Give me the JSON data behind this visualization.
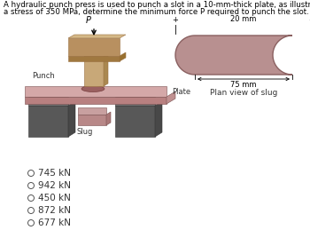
{
  "title_line1": "A hydraulic punch press is used to punch a slot in a 10-mm-thick plate, as illustrated. If the plate shears at",
  "title_line2": "a stress of 350 MPa, determine the minimum force P required to punch the slot.",
  "title_fontsize": 6.2,
  "options": [
    "745 kN",
    "942 kN",
    "450 kN",
    "872 kN",
    "677 kN"
  ],
  "option_fontsize": 7.5,
  "slug_label": "Slug",
  "plate_label": "Plate",
  "punch_label": "Punch",
  "plan_label": "Plan view of slug",
  "dim1_label": "20 mm",
  "dim2_label": "75 mm",
  "colors": {
    "punch_body": "#c8a878",
    "punch_head": "#b89060",
    "punch_top": "#d4b888",
    "plate_top": "#d4a8a8",
    "plate_side": "#c09090",
    "plate_front": "#b88080",
    "support_top": "#707070",
    "support_front": "#585858",
    "support_side": "#484848",
    "slug_top": "#c8a0a0",
    "slug_front": "#b88888",
    "plan_fill": "#b89090",
    "plan_edge": "#8a6060",
    "background": "#ffffff"
  }
}
